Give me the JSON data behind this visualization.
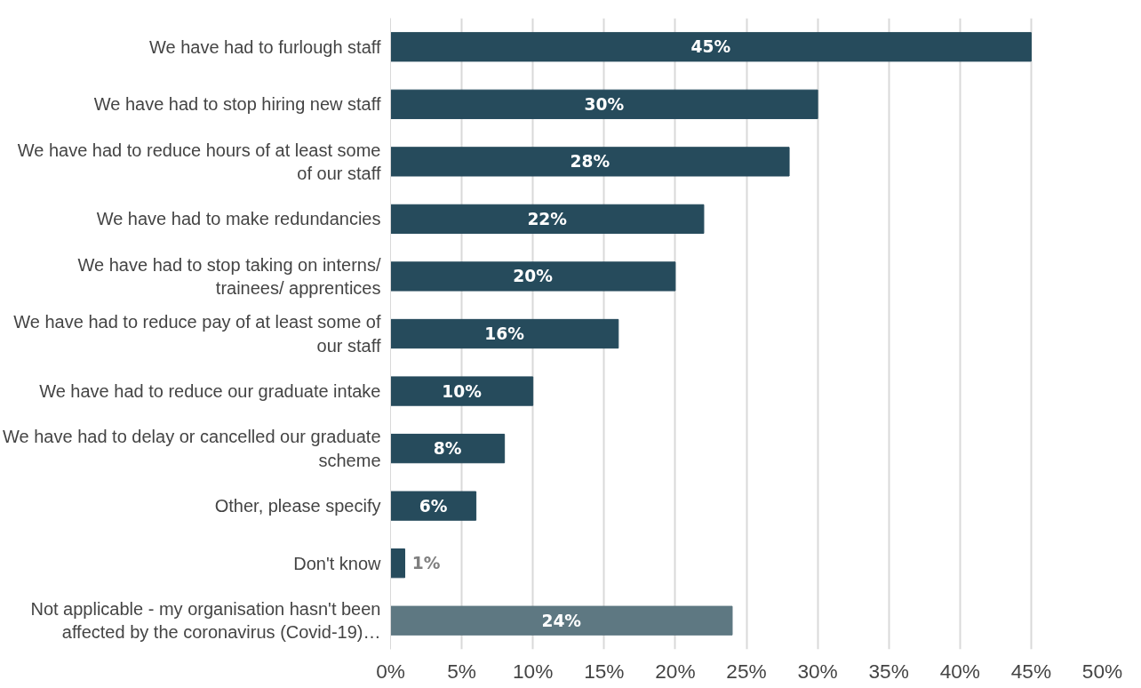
{
  "chart_data": {
    "type": "bar",
    "orientation": "horizontal",
    "categories": [
      "We have had to furlough staff",
      "We have had to stop hiring new staff",
      "We have had to reduce hours of at least some of our staff",
      "We have had to make redundancies",
      "We have had to stop taking on interns/ trainees/ apprentices",
      "We have had to reduce pay of at least some of our staff",
      "We have had to reduce our graduate intake",
      "We have had to delay or cancelled our graduate scheme",
      "Other, please specify",
      "Don't know",
      "Not applicable - my organisation hasn't been affected by the coronavirus (Covid-19)…"
    ],
    "values": [
      45,
      30,
      28,
      22,
      20,
      16,
      10,
      8,
      6,
      1,
      24
    ],
    "colors": [
      "#264b5c",
      "#264b5c",
      "#264b5c",
      "#264b5c",
      "#264b5c",
      "#264b5c",
      "#264b5c",
      "#264b5c",
      "#264b5c",
      "#264b5c",
      "#5e7882"
    ],
    "value_labels": [
      "45%",
      "30%",
      "28%",
      "22%",
      "20%",
      "16%",
      "10%",
      "8%",
      "6%",
      "1%",
      "24%"
    ],
    "xlim": [
      0,
      50
    ],
    "xticks": [
      {
        "value": 0,
        "label": "0%"
      },
      {
        "value": 5,
        "label": "5%"
      },
      {
        "value": 10,
        "label": "10%"
      },
      {
        "value": 15,
        "label": "15%"
      },
      {
        "value": 20,
        "label": "20%"
      },
      {
        "value": 25,
        "label": "25%"
      },
      {
        "value": 30,
        "label": "30%"
      },
      {
        "value": 35,
        "label": "35%"
      },
      {
        "value": 40,
        "label": "40%"
      },
      {
        "value": 45,
        "label": "45%"
      },
      {
        "value": 50,
        "label": "50%"
      }
    ],
    "grid": "x"
  }
}
